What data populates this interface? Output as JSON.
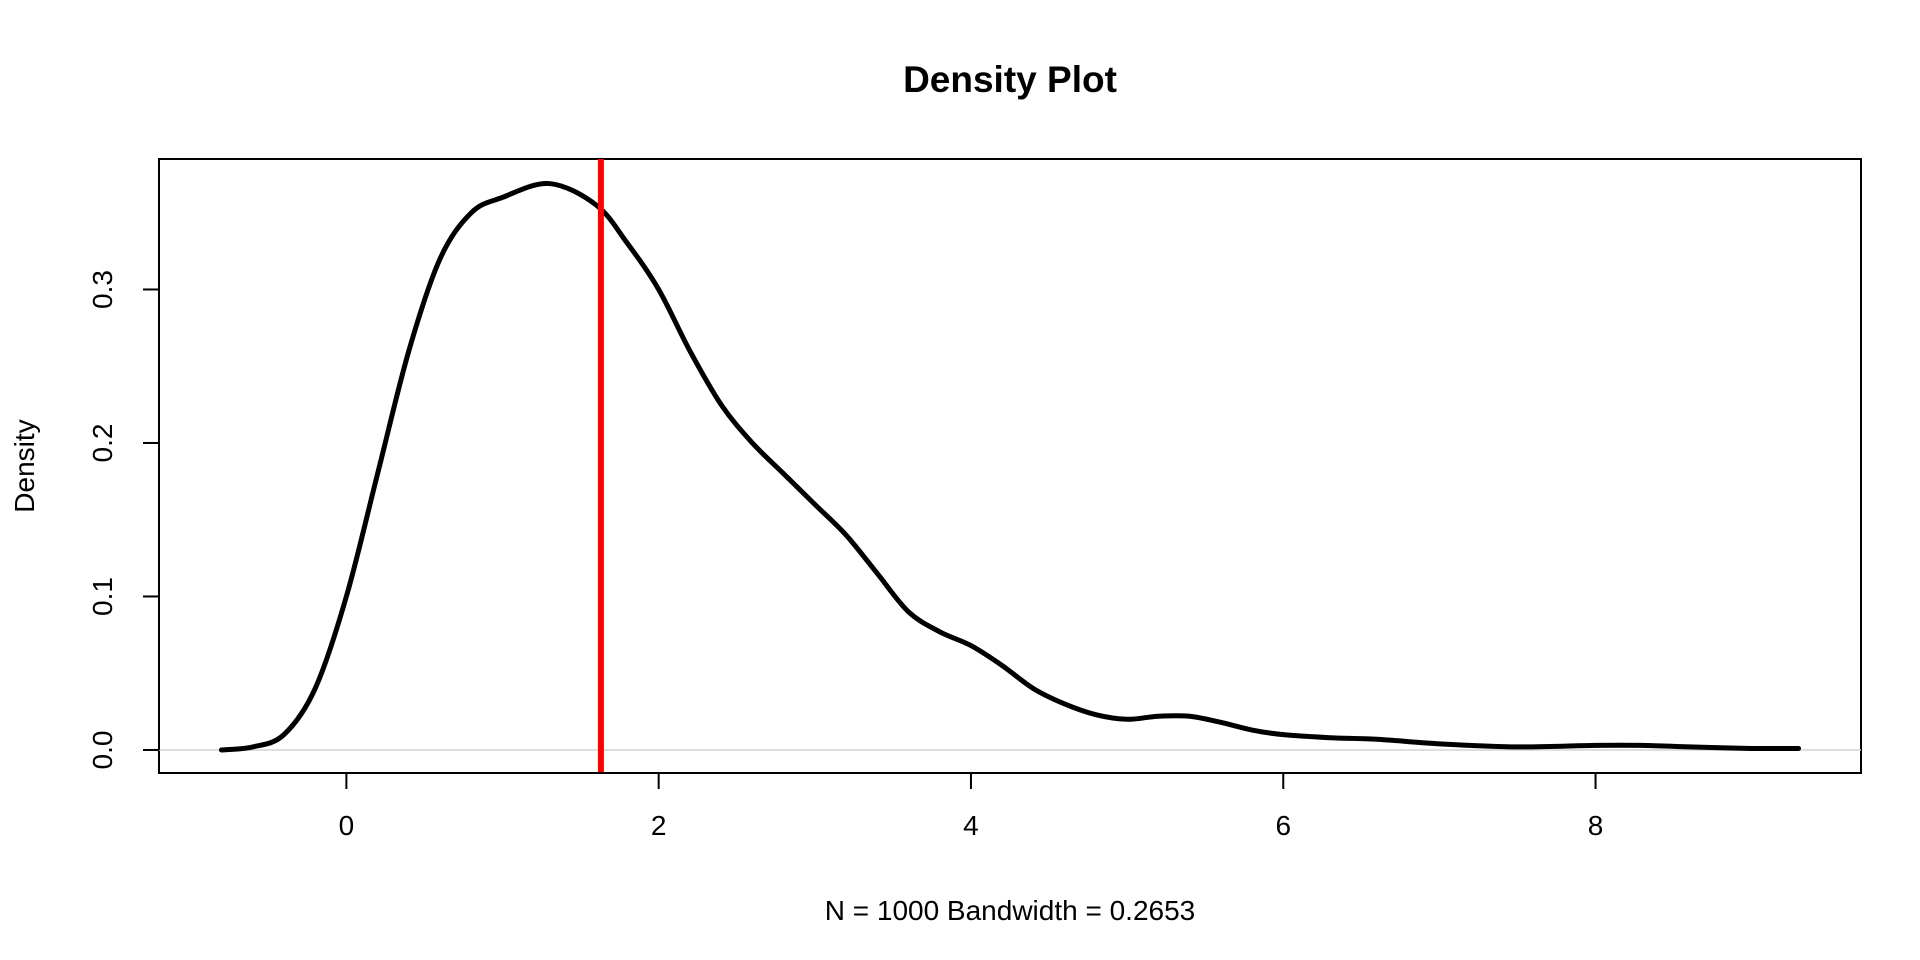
{
  "chart_data": {
    "type": "line",
    "title": "Density Plot",
    "xlabel": "N = 1000   Bandwidth = 0.2653",
    "ylabel": "Density",
    "xlim": [
      -1.2,
      9.7
    ],
    "ylim": [
      -0.015,
      0.385
    ],
    "x_ticks": [
      0,
      2,
      4,
      6,
      8
    ],
    "y_ticks": [
      0.0,
      0.1,
      0.2,
      0.3
    ],
    "x_tick_labels": [
      "0",
      "2",
      "4",
      "6",
      "8"
    ],
    "y_tick_labels": [
      "0.0",
      "0.1",
      "0.2",
      "0.3"
    ],
    "grid": false,
    "zero_line": true,
    "series": [
      {
        "color": "#000000",
        "x": [
          -0.8,
          -0.6,
          -0.4,
          -0.2,
          0.0,
          0.2,
          0.4,
          0.6,
          0.8,
          1.0,
          1.3,
          1.6,
          1.8,
          2.0,
          2.2,
          2.4,
          2.6,
          2.8,
          3.0,
          3.2,
          3.4,
          3.6,
          3.8,
          4.0,
          4.2,
          4.4,
          4.6,
          4.8,
          5.0,
          5.2,
          5.4,
          5.6,
          5.8,
          6.0,
          6.3,
          6.6,
          7.0,
          7.5,
          8.0,
          8.3,
          8.6,
          9.0,
          9.3
        ],
        "y": [
          0.0,
          0.002,
          0.01,
          0.04,
          0.1,
          0.18,
          0.26,
          0.32,
          0.35,
          0.36,
          0.369,
          0.355,
          0.33,
          0.3,
          0.26,
          0.225,
          0.2,
          0.18,
          0.16,
          0.14,
          0.115,
          0.09,
          0.077,
          0.068,
          0.055,
          0.04,
          0.03,
          0.023,
          0.02,
          0.022,
          0.022,
          0.018,
          0.013,
          0.01,
          0.008,
          0.007,
          0.004,
          0.002,
          0.003,
          0.003,
          0.002,
          0.001,
          0.001
        ]
      }
    ],
    "vline": {
      "x": 1.63,
      "color": "#ff0000"
    }
  }
}
